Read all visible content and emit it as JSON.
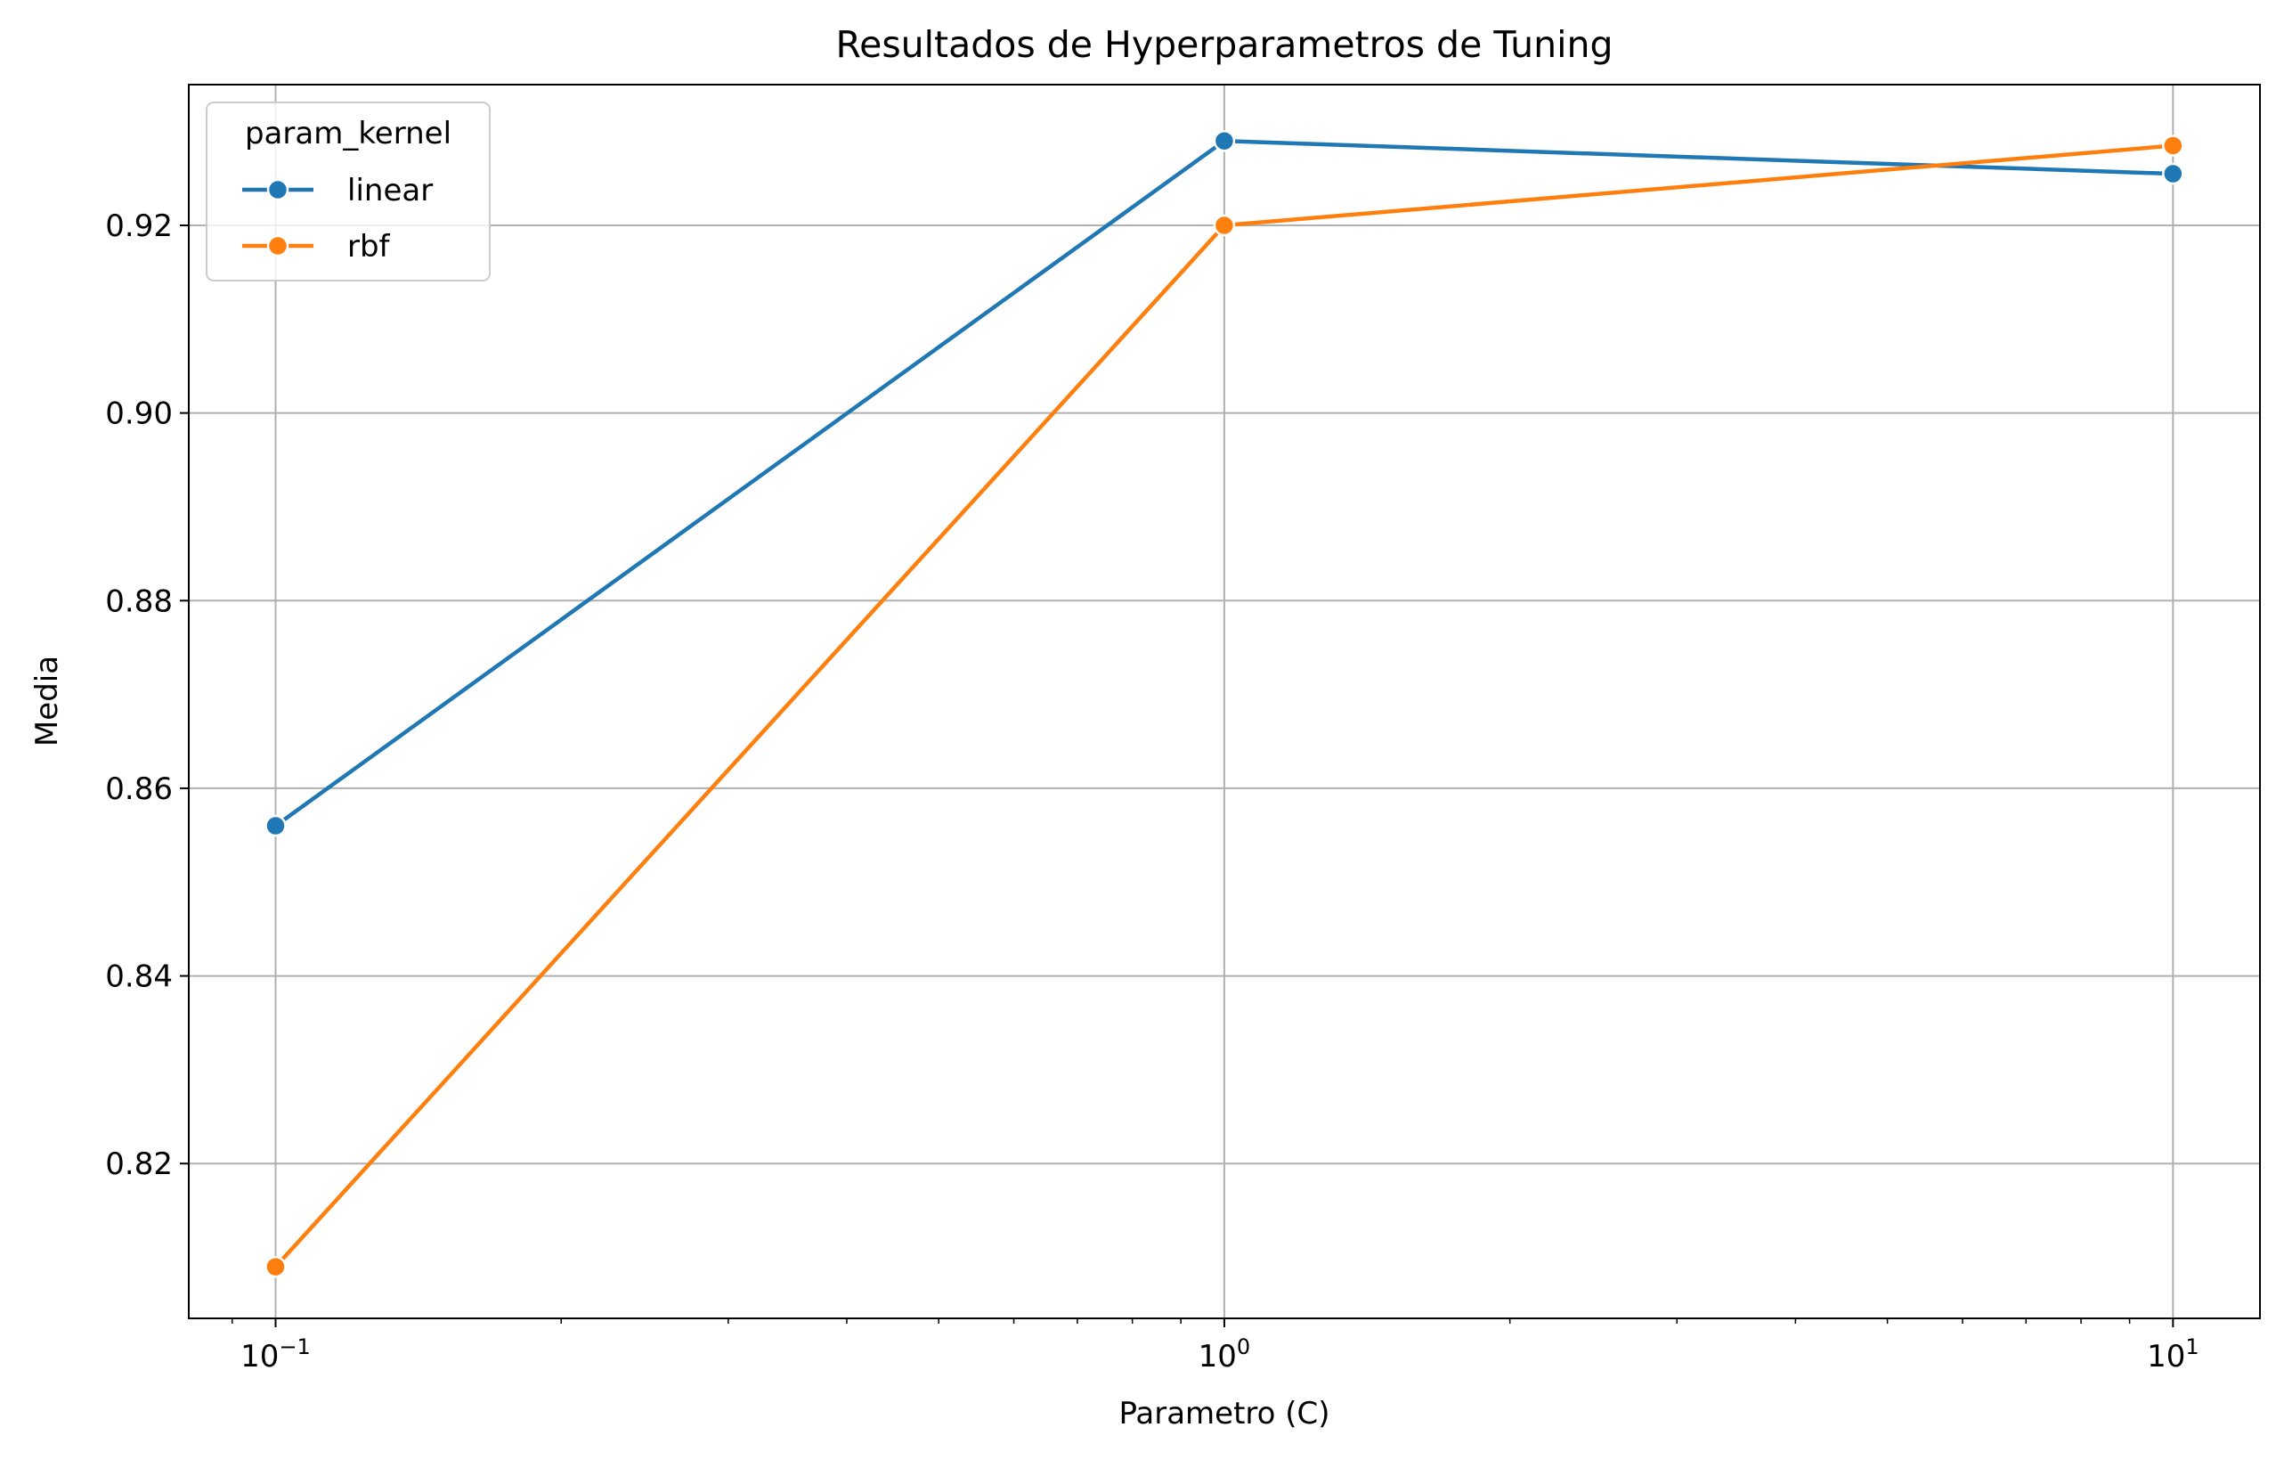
{
  "chart_data": {
    "type": "line",
    "title": "Resultados de Hyperparametros de Tuning",
    "xlabel": "Parametro (C)",
    "ylabel": "Media",
    "x_scale": "log",
    "x": [
      0.1,
      1,
      10
    ],
    "x_tick_labels": [
      {
        "value": 0.1,
        "base": "10",
        "exp": "−1"
      },
      {
        "value": 1,
        "base": "10",
        "exp": "0"
      },
      {
        "value": 10,
        "base": "10",
        "exp": "1"
      }
    ],
    "xlim": [
      0.081,
      12.35
    ],
    "ylim": [
      0.8035,
      0.935
    ],
    "y_ticks": [
      0.82,
      0.84,
      0.86,
      0.88,
      0.9,
      0.92
    ],
    "y_tick_labels": [
      "0.82",
      "0.84",
      "0.86",
      "0.88",
      "0.90",
      "0.92"
    ],
    "grid": true,
    "legend": {
      "title": "param_kernel",
      "position": "upper-left"
    },
    "series": [
      {
        "name": "linear",
        "color": "#1f77b4",
        "marker": "circle",
        "values": [
          0.856,
          0.929,
          0.9255
        ]
      },
      {
        "name": "rbf",
        "color": "#ff7f0e",
        "marker": "circle",
        "values": [
          0.809,
          0.92,
          0.9285
        ]
      }
    ]
  }
}
